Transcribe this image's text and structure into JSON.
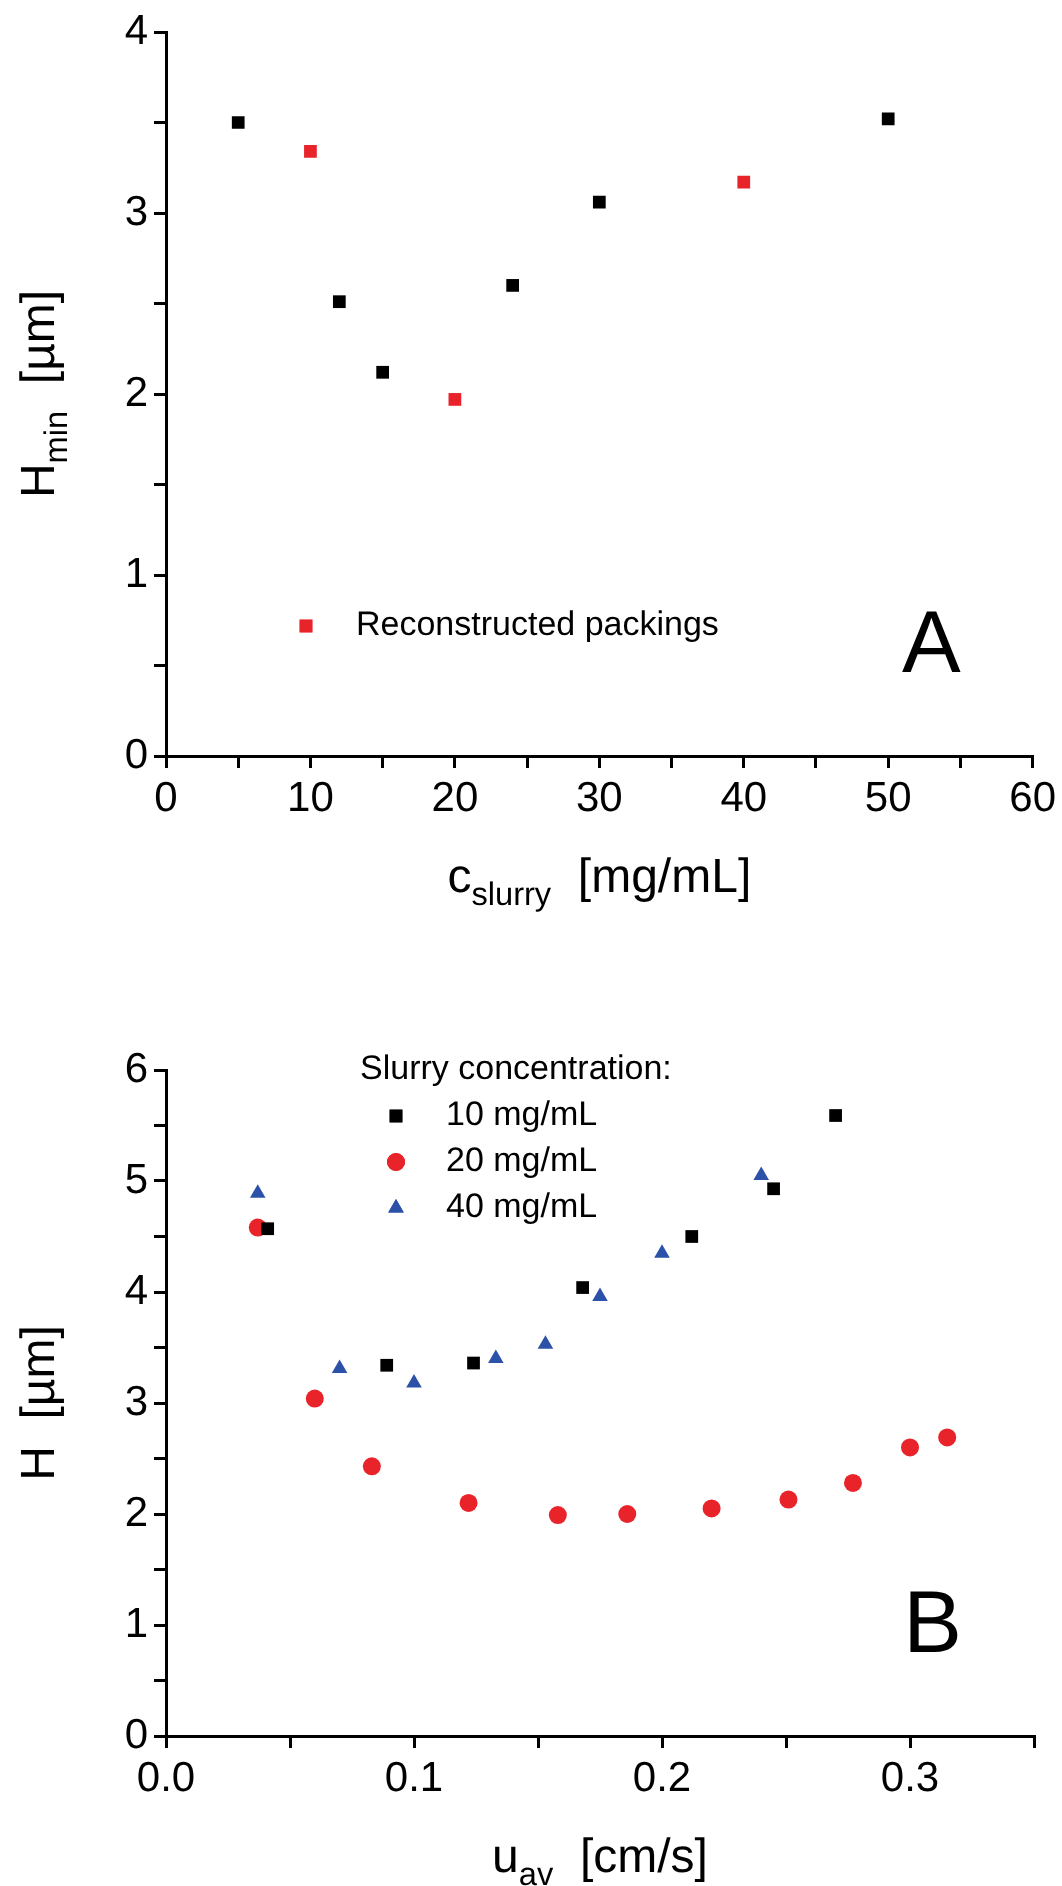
{
  "chart_data": [
    {
      "type": "scatter",
      "xlabel": "c$_{slurry}$  [mg/mL]",
      "ylabel": "H$_{min}$  [µm]",
      "xlim": [
        0,
        60
      ],
      "ylim": [
        0,
        4
      ],
      "xticks": [
        0,
        {
          "value": 5,
          "label": null
        },
        10,
        {
          "value": 15,
          "label": null
        },
        20,
        {
          "value": 25,
          "label": null
        },
        30,
        {
          "value": 35,
          "label": null
        },
        40,
        {
          "value": 45,
          "label": null
        },
        50,
        {
          "value": 55,
          "label": null
        },
        60
      ],
      "yticks": [
        0,
        {
          "value": 0.5,
          "label": null
        },
        1,
        {
          "value": 1.5,
          "label": null
        },
        2,
        {
          "value": 2.5,
          "label": null
        },
        3,
        {
          "value": 3.5,
          "label": null
        },
        4
      ],
      "marker": "square",
      "legend": "bottom left",
      "grid": false,
      "annotations": [
        "A"
      ],
      "series": [
        {
          "color": "#000000",
          "x": [
            5,
            12,
            15,
            24,
            30,
            50
          ],
          "values": [
            3.5,
            2.51,
            2.12,
            2.6,
            3.06,
            3.52
          ]
        },
        {
          "name": "Reconstructed packings",
          "color": "#e8232a",
          "x": [
            10,
            20,
            40
          ],
          "values": [
            3.34,
            1.97,
            3.17
          ]
        }
      ]
    },
    {
      "type": "scatter",
      "xlabel": "u$_{av}$  [cm/s]",
      "ylabel": "H  [µm]",
      "xlim": [
        0,
        0.35
      ],
      "ylim": [
        0,
        6
      ],
      "xticks": [
        {
          "value": 0,
          "label": "0.0"
        },
        {
          "value": 0.05,
          "label": null
        },
        0.1,
        {
          "value": 0.15,
          "label": null
        },
        0.2,
        {
          "value": 0.25,
          "label": null
        },
        0.3,
        {
          "value": 0.35,
          "label": null
        }
      ],
      "yticks": [
        0,
        {
          "value": 0.5,
          "label": null
        },
        1,
        {
          "value": 1.5,
          "label": null
        },
        2,
        {
          "value": 2.5,
          "label": null
        },
        3,
        {
          "value": 3.5,
          "label": null
        },
        4,
        {
          "value": 4.5,
          "label": null
        },
        5,
        {
          "value": 5.5,
          "label": null
        },
        6
      ],
      "legend": "top",
      "legend_title": "Slurry concentration:",
      "grid": false,
      "annotations": [
        "B"
      ],
      "series": [
        {
          "name": "10 mg/mL",
          "color": "#000000",
          "marker": "square",
          "x": [
            0.041,
            0.089,
            0.124,
            0.168,
            0.212,
            0.245,
            0.27
          ],
          "values": [
            4.57,
            3.34,
            3.36,
            4.04,
            4.5,
            4.93,
            5.59
          ]
        },
        {
          "name": "20 mg/mL",
          "color": "#e8232a",
          "marker": "circle",
          "x": [
            0.037,
            0.06,
            0.083,
            0.122,
            0.158,
            0.186,
            0.22,
            0.251,
            0.277,
            0.3,
            0.315
          ],
          "values": [
            4.58,
            3.04,
            2.43,
            2.1,
            1.99,
            2.0,
            2.05,
            2.13,
            2.28,
            2.6,
            2.69
          ]
        },
        {
          "name": "40 mg/mL",
          "color": "#2b52a8",
          "marker": "triangle",
          "x": [
            0.037,
            0.07,
            0.1,
            0.133,
            0.153,
            0.175,
            0.2,
            0.24
          ],
          "values": [
            4.89,
            3.31,
            3.18,
            3.4,
            3.53,
            3.96,
            4.35,
            5.05
          ]
        }
      ]
    }
  ]
}
